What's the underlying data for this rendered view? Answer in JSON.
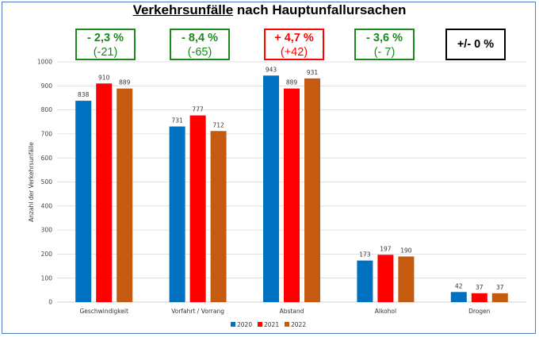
{
  "title_part1": "Verkehrsunfälle",
  "title_part2": " nach Hauptunfallursachen",
  "changes": [
    {
      "pct": "- 2,3 %",
      "abs": "(-21)",
      "color": "#1a8a1a"
    },
    {
      "pct": "- 8,4 %",
      "abs": "(-65)",
      "color": "#1a8a1a"
    },
    {
      "pct": "+ 4,7 %",
      "abs": "(+42)",
      "color": "#ff0000"
    },
    {
      "pct": "- 3,6 %",
      "abs": "(- 7)",
      "color": "#1a8a1a"
    },
    {
      "pct": "+/- 0 %",
      "abs": "",
      "color": "#000000"
    }
  ],
  "chart_data": {
    "type": "bar",
    "title": "Verkehrsunfälle nach Hauptunfallursachen",
    "categories": [
      "Geschwindigkeit",
      "Vorfahrt / Vorrang",
      "Abstand",
      "Alkohol",
      "Drogen"
    ],
    "series": [
      {
        "name": "2020",
        "color": "#0070c0",
        "values": [
          838,
          731,
          943,
          173,
          42
        ]
      },
      {
        "name": "2021",
        "color": "#ff0000",
        "values": [
          910,
          777,
          889,
          197,
          37
        ]
      },
      {
        "name": "2022",
        "color": "#c55a11",
        "values": [
          889,
          712,
          931,
          190,
          37
        ]
      }
    ],
    "ylabel": "Anzahl der Verkehrsunfälle",
    "xlabel": "",
    "ylim": [
      0,
      1000
    ],
    "yticks": [
      0,
      100,
      200,
      300,
      400,
      500,
      600,
      700,
      800,
      900,
      1000
    ],
    "grid": true,
    "legend": "bottom"
  }
}
